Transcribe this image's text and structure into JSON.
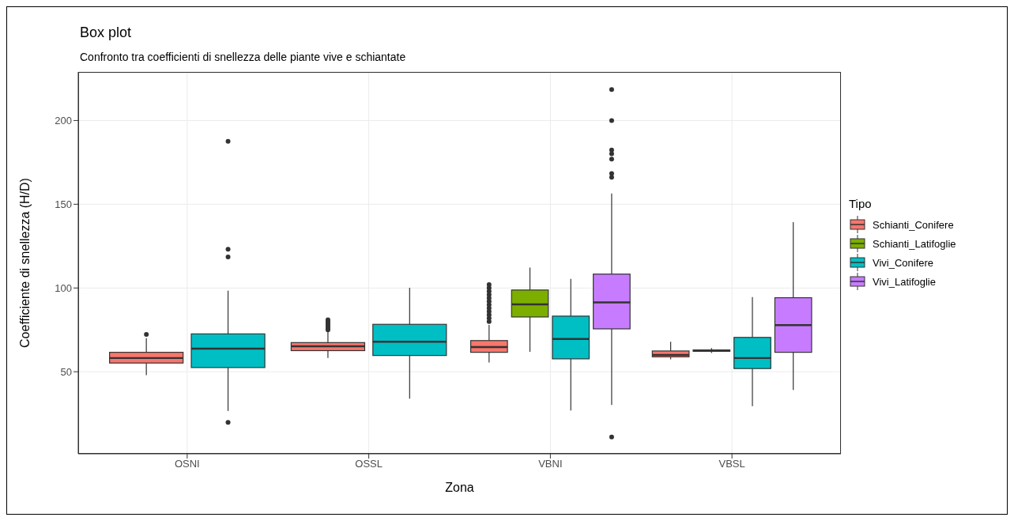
{
  "chart_data": {
    "type": "box",
    "title": "Box plot",
    "subtitle": "Confronto tra coefficienti di snellezza delle piante vive e schiantate",
    "xlabel": "Zona",
    "ylabel": "Coefficiente di snellezza (H/D)",
    "legend_title": "Tipo",
    "legend": "right",
    "grid": true,
    "categories": [
      "OSNI",
      "OSSL",
      "VBNI",
      "VBSL"
    ],
    "ylim": [
      1,
      229
    ],
    "yticks": [
      50,
      100,
      150,
      200
    ],
    "series": [
      {
        "name": "Schianti_Conifere",
        "color": "#f8766d",
        "boxes": [
          {
            "low": 48,
            "q1": 55.2,
            "median": 58.2,
            "q3": 61.6,
            "high": 70,
            "outliers": [
              72.3
            ]
          },
          {
            "low": 58.2,
            "q1": 62.6,
            "median": 65.2,
            "q3": 67.4,
            "high": 74,
            "outliers": [
              75,
              76,
              77,
              78,
              79,
              80,
              81
            ]
          },
          {
            "low": 55.5,
            "q1": 61.6,
            "median": 64.7,
            "q3": 68.6,
            "high": 78,
            "outliers": [
              80,
              82,
              84,
              86,
              88,
              90,
              92,
              94,
              96,
              98,
              100,
              102
            ]
          },
          {
            "low": 57.4,
            "q1": 58.9,
            "median": 60,
            "q3": 62.4,
            "high": 67.9
          }
        ]
      },
      {
        "name": "Schianti_Latifoglie",
        "color": "#7cae00",
        "boxes": [
          null,
          null,
          {
            "low": 61.9,
            "q1": 82.7,
            "median": 90.2,
            "q3": 98.8,
            "high": 112.2
          },
          {
            "low": 61.2,
            "q1": 62.2,
            "median": 62.6,
            "q3": 63,
            "high": 64.1
          }
        ]
      },
      {
        "name": "Vivi_Conifere",
        "color": "#00bfc4",
        "boxes": [
          {
            "low": 26.6,
            "q1": 52.5,
            "median": 63.8,
            "q3": 72.6,
            "high": 98.4,
            "outliers": [
              187.6,
              123.1,
              118.5,
              19.8
            ]
          },
          {
            "low": 33.9,
            "q1": 59.7,
            "median": 67.9,
            "q3": 78.3,
            "high": 100.1
          },
          {
            "low": 26.9,
            "q1": 57.7,
            "median": 69.6,
            "q3": 83.2,
            "high": 105.4
          },
          {
            "low": 29.5,
            "q1": 51.9,
            "median": 58.2,
            "q3": 70.5,
            "high": 94.6
          }
        ]
      },
      {
        "name": "Vivi_Latifoglie",
        "color": "#c77cff",
        "boxes": [
          null,
          null,
          {
            "low": 30.2,
            "q1": 75.6,
            "median": 91.4,
            "q3": 108.3,
            "high": 156.4,
            "outliers": [
              218.5,
              200,
              182.4,
              180.2,
              176.9,
              168.3,
              166.1,
              11
            ]
          },
          {
            "low": 39.1,
            "q1": 61.6,
            "median": 77.8,
            "q3": 94.2,
            "high": 139.3
          }
        ]
      }
    ]
  }
}
